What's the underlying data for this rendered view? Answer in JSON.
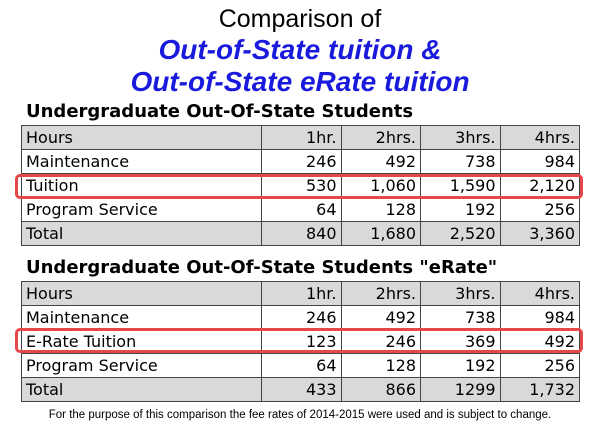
{
  "title": {
    "main": "Comparison of",
    "line1": "Out-of-State tuition &",
    "line2": "Out-of-State eRate tuition"
  },
  "tables": [
    {
      "heading": "Undergraduate Out-Of-State Students",
      "header": [
        "Hours",
        "1hr.",
        "2hrs.",
        "3hrs.",
        "4hrs."
      ],
      "rows": [
        [
          "Maintenance",
          "246",
          "492",
          "738",
          "984"
        ],
        [
          "Tuition",
          "530",
          "1,060",
          "1,590",
          "2,120"
        ],
        [
          "Program Service",
          "64",
          "128",
          "192",
          "256"
        ],
        [
          "Total",
          "840",
          "1,680",
          "2,520",
          "3,360"
        ]
      ]
    },
    {
      "heading": "Undergraduate Out-Of-State Students \"eRate\"",
      "header": [
        "Hours",
        "1hr.",
        "2hrs.",
        "3hrs.",
        "4hrs."
      ],
      "rows": [
        [
          "Maintenance",
          "246",
          "492",
          "738",
          "984"
        ],
        [
          "E-Rate Tuition",
          "123",
          "246",
          "369",
          "492"
        ],
        [
          "Program Service",
          "64",
          "128",
          "192",
          "256"
        ],
        [
          "Total",
          "433",
          "866",
          "1299",
          "1,732"
        ]
      ]
    }
  ],
  "footnote": "For the purpose of this comparison the fee rates of 2014-2015 were used and is subject to change.",
  "colors": {
    "title_blue": "#1a1adc",
    "highlight_red": "#e8474a",
    "header_gray": "#d9d9d9"
  }
}
